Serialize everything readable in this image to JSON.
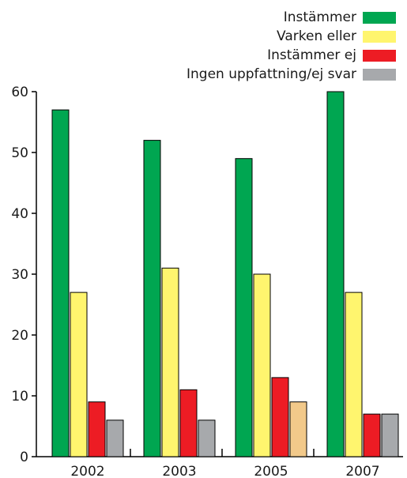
{
  "chart_data": {
    "type": "bar",
    "title": "",
    "xlabel": "",
    "ylabel": "",
    "categories": [
      "2002",
      "2003",
      "2005",
      "2007"
    ],
    "ylim": [
      0,
      60
    ],
    "yticks": [
      "0",
      "10",
      "20",
      "30",
      "40",
      "50",
      "60"
    ],
    "grid": false,
    "legend_position": "top-right",
    "series": [
      {
        "name": "Instämmer",
        "color": "#00a651",
        "values": [
          57,
          52,
          49,
          60
        ]
      },
      {
        "name": "Varken eller",
        "color": "#fff56e",
        "values": [
          27,
          31,
          30,
          27
        ]
      },
      {
        "name": "Instämmer ej",
        "color": "#ed1c24",
        "values": [
          9,
          11,
          13,
          7
        ]
      },
      {
        "name": "Ingen uppfattning/ej svar",
        "color": "#a7a9ac",
        "values": [
          6,
          6,
          9,
          7
        ]
      }
    ],
    "highlight": {
      "series": 3,
      "category": 2,
      "color": "#f2c98a"
    }
  }
}
